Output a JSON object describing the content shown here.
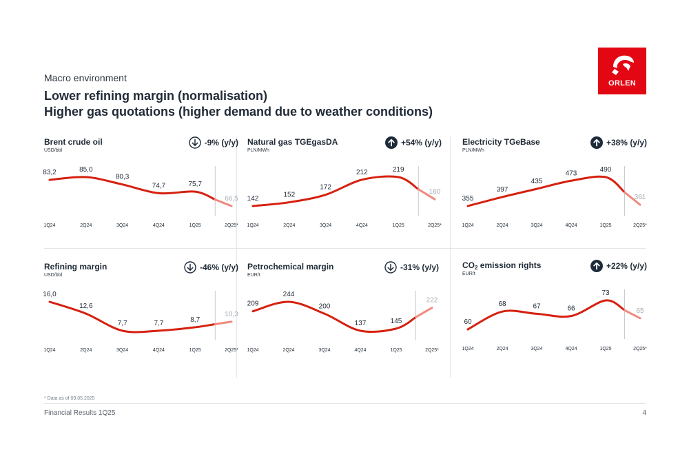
{
  "header": {
    "section": "Macro environment",
    "headline_1": "Lower refining margin (normalisation)",
    "headline_2": "Higher gas quotations (higher demand due to weather conditions)"
  },
  "logo": {
    "wordmark": "ORLEN",
    "color": "#e30613"
  },
  "colors": {
    "line": "#d6200f",
    "forecast": "#ef8a7e",
    "text": "#1f2a36"
  },
  "chart_data": [
    {
      "type": "line",
      "title": "Brent crude oil",
      "unit": "USD/bbl",
      "change": "-9% (y/y)",
      "direction": "down",
      "categories": [
        "1Q24",
        "2Q24",
        "3Q24",
        "4Q24",
        "1Q25",
        "2Q25*"
      ],
      "values": [
        83.2,
        85.0,
        80.3,
        74.7,
        75.7,
        66.5
      ],
      "labels": [
        "83,2",
        "85,0",
        "80,3",
        "74,7",
        "75,7",
        "66,5"
      ],
      "forecast_from_index": 5
    },
    {
      "type": "line",
      "title": "Natural gas TGEgasDA",
      "unit": "PLN/MWh",
      "change": "+54% (y/y)",
      "direction": "up",
      "categories": [
        "1Q24",
        "2Q24",
        "3Q24",
        "4Q24",
        "1Q25",
        "2Q25*"
      ],
      "values": [
        142,
        152,
        172,
        212,
        219,
        160
      ],
      "labels": [
        "142",
        "152",
        "172",
        "212",
        "219",
        "160"
      ],
      "forecast_from_index": 5
    },
    {
      "type": "line",
      "title": "Electricity TGeBase",
      "unit": "PLN/MWh",
      "change": "+38% (y/y)",
      "direction": "up",
      "categories": [
        "1Q24",
        "2Q24",
        "3Q24",
        "4Q24",
        "1Q25",
        "2Q25*"
      ],
      "values": [
        355,
        397,
        435,
        473,
        490,
        361
      ],
      "labels": [
        "355",
        "397",
        "435",
        "473",
        "490",
        "361"
      ],
      "forecast_from_index": 5
    },
    {
      "type": "line",
      "title": "Refining margin",
      "unit": "USD/bbl",
      "change": "-46% (y/y)",
      "direction": "down",
      "categories": [
        "1Q24",
        "2Q24",
        "3Q24",
        "4Q24",
        "1Q25",
        "2Q25*"
      ],
      "values": [
        16.0,
        12.6,
        7.7,
        7.7,
        8.7,
        10.3
      ],
      "labels": [
        "16,0",
        "12,6",
        "7,7",
        "7,7",
        "8,7",
        "10,3"
      ],
      "forecast_from_index": 5
    },
    {
      "type": "line",
      "title": "Petrochemical margin",
      "unit": "EUR/t",
      "change": "-31% (y/y)",
      "direction": "down",
      "categories": [
        "1Q24",
        "2Q24",
        "3Q24",
        "4Q24",
        "1Q25",
        "2Q25*"
      ],
      "values": [
        209,
        244,
        200,
        137,
        145,
        222
      ],
      "labels": [
        "209",
        "244",
        "200",
        "137",
        "145",
        "222"
      ],
      "forecast_from_index": 5
    },
    {
      "type": "line",
      "title": "CO",
      "title_sub": "2",
      "title_rest": " emission rights",
      "unit": "EUR/t",
      "change": "+22% (y/y)",
      "direction": "up",
      "categories": [
        "1Q24",
        "2Q24",
        "3Q24",
        "4Q24",
        "1Q25",
        "2Q25*"
      ],
      "values": [
        60,
        68,
        67,
        66,
        73,
        65
      ],
      "labels": [
        "60",
        "68",
        "67",
        "66",
        "73",
        "65"
      ],
      "forecast_from_index": 5
    }
  ],
  "footnote": "* Data as of 09.05.2025",
  "footer": {
    "left": "Financial Results 1Q25",
    "page": "4"
  }
}
